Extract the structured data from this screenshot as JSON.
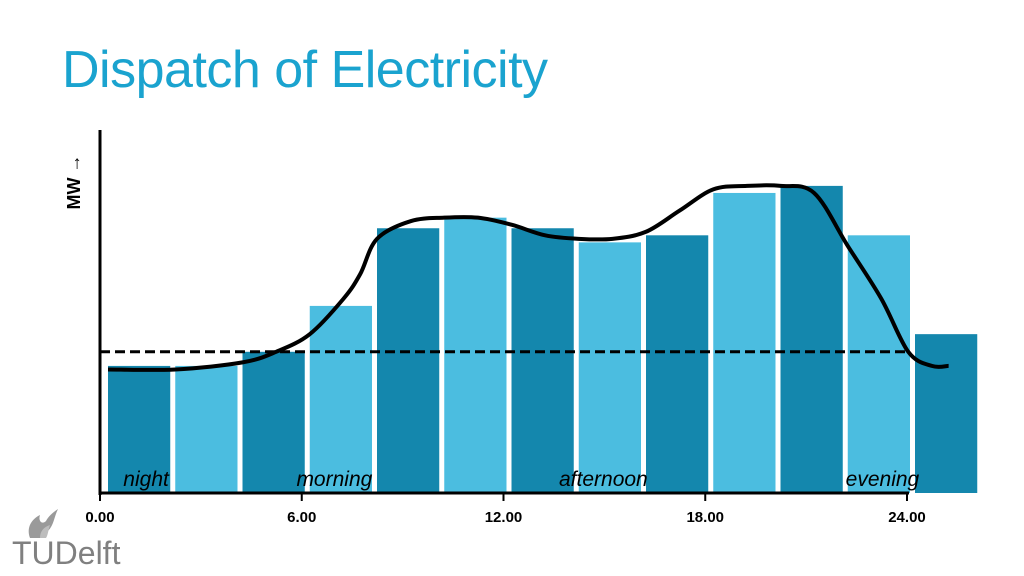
{
  "title": "Dispatch of Electricity",
  "logo": {
    "text": "TUDelft"
  },
  "chart_data": {
    "type": "bar",
    "title": "Dispatch of Electricity",
    "ylabel": "MW →",
    "xlabel": "",
    "x_ticks": [
      "0.00",
      "6.00",
      "12.00",
      "18.00",
      "24.00"
    ],
    "xlim": [
      0,
      24
    ],
    "ylim": [
      0,
      100
    ],
    "bars": [
      {
        "x_start": 0,
        "x_end": 2,
        "value": 36
      },
      {
        "x_start": 2,
        "x_end": 4,
        "value": 36
      },
      {
        "x_start": 4,
        "x_end": 6,
        "value": 40
      },
      {
        "x_start": 6,
        "x_end": 8,
        "value": 53
      },
      {
        "x_start": 8,
        "x_end": 10,
        "value": 75
      },
      {
        "x_start": 10,
        "x_end": 12,
        "value": 78
      },
      {
        "x_start": 12,
        "x_end": 14,
        "value": 75
      },
      {
        "x_start": 14,
        "x_end": 16,
        "value": 71
      },
      {
        "x_start": 16,
        "x_end": 18,
        "value": 73
      },
      {
        "x_start": 18,
        "x_end": 20,
        "value": 85
      },
      {
        "x_start": 20,
        "x_end": 22,
        "value": 87
      },
      {
        "x_start": 22,
        "x_end": 24,
        "value": 73
      },
      {
        "x_start": 24,
        "x_end": 26,
        "value": 45
      }
    ],
    "bar_colors": [
      "#1487ad",
      "#4bbde0"
    ],
    "baseload": 40,
    "demand_curve": [
      [
        0,
        35
      ],
      [
        2,
        35
      ],
      [
        4,
        37
      ],
      [
        5,
        40
      ],
      [
        6,
        45
      ],
      [
        7,
        55
      ],
      [
        7.5,
        62
      ],
      [
        8,
        72
      ],
      [
        9,
        77
      ],
      [
        10,
        78
      ],
      [
        11,
        78
      ],
      [
        12,
        76
      ],
      [
        13,
        73
      ],
      [
        14,
        72
      ],
      [
        15,
        72
      ],
      [
        16,
        74
      ],
      [
        17,
        80
      ],
      [
        18,
        86
      ],
      [
        19,
        87
      ],
      [
        20,
        87
      ],
      [
        21,
        85
      ],
      [
        22,
        70
      ],
      [
        23,
        55
      ],
      [
        23.8,
        40
      ],
      [
        24.5,
        36
      ],
      [
        25,
        36
      ]
    ],
    "period_labels": [
      {
        "text": "night",
        "x": 1.4
      },
      {
        "text": "morning",
        "x": 7.0
      },
      {
        "text": "afternoon",
        "x": 15.0
      },
      {
        "text": "evening",
        "x": 23.3
      }
    ],
    "grid": false,
    "legend": "none"
  }
}
